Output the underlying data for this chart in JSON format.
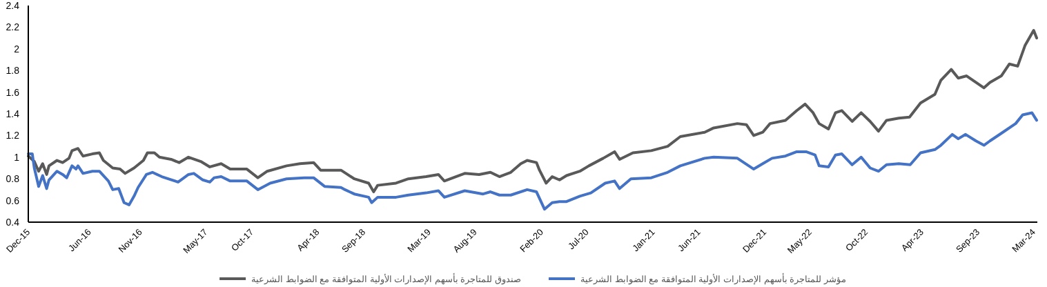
{
  "chart_data": {
    "type": "line",
    "xlim": [
      "2015-12-01",
      "2024-03-12"
    ],
    "xticks": [
      {
        "value": "2015-12-01",
        "label": "Dec-15"
      },
      {
        "value": "2016-06-01",
        "label": "Jun-16"
      },
      {
        "value": "2016-11-01",
        "label": "Nov-16"
      },
      {
        "value": "2017-05-16",
        "label": "May-17"
      },
      {
        "value": "2017-10-01",
        "label": "Oct-17"
      },
      {
        "value": "2018-04-16",
        "label": "Apr-18"
      },
      {
        "value": "2018-09-01",
        "label": "Sep-18"
      },
      {
        "value": "2019-03-16",
        "label": "Mar-19"
      },
      {
        "value": "2019-08-01",
        "label": "Aug-19"
      },
      {
        "value": "2020-02-16",
        "label": "Feb-20"
      },
      {
        "value": "2020-07-01",
        "label": "Jul-20"
      },
      {
        "value": "2021-01-16",
        "label": "Jan-21"
      },
      {
        "value": "2021-06-01",
        "label": "Jun-21"
      },
      {
        "value": "2021-12-16",
        "label": "Dec-21"
      },
      {
        "value": "2022-05-01",
        "label": "May-22"
      },
      {
        "value": "2022-10-16",
        "label": "Oct-22"
      },
      {
        "value": "2023-04-01",
        "label": "Apr-23"
      },
      {
        "value": "2023-09-16",
        "label": "Sep-23"
      },
      {
        "value": "2024-03-01",
        "label": "Mar-24"
      }
    ],
    "ylim": [
      0.4,
      2.4
    ],
    "yticks": [
      0.4,
      0.6,
      0.8,
      1,
      1.2,
      1.4,
      1.6,
      1.8,
      2,
      2.2,
      2.4
    ],
    "grid": false,
    "legend": "bottom",
    "marker": "none",
    "line_style": "solid",
    "series": [
      {
        "name": "صندوق للمتاجرة بأسهم الإصدارات الأولية المتوافقة مع الضوابط الشرعية",
        "color": "#595959",
        "x": [
          "2015-12-01",
          "2015-12-19",
          "2016-01-01",
          "2016-01-13",
          "2016-01-25",
          "2016-02-01",
          "2016-02-25",
          "2016-03-13",
          "2016-04-01",
          "2016-04-10",
          "2016-04-28",
          "2016-05-13",
          "2016-06-10",
          "2016-07-01",
          "2016-07-13",
          "2016-08-10",
          "2016-09-01",
          "2016-09-16",
          "2016-10-13",
          "2016-11-10",
          "2016-11-22",
          "2016-12-13",
          "2016-12-28",
          "2017-02-01",
          "2017-02-25",
          "2017-03-25",
          "2017-05-01",
          "2017-05-28",
          "2017-07-01",
          "2017-07-28",
          "2017-09-16",
          "2017-10-19",
          "2017-11-16",
          "2018-01-13",
          "2018-02-22",
          "2018-04-04",
          "2018-04-25",
          "2018-06-25",
          "2018-08-04",
          "2018-09-16",
          "2018-10-01",
          "2018-10-13",
          "2018-12-07",
          "2019-01-13",
          "2019-03-07",
          "2019-04-13",
          "2019-05-01",
          "2019-07-01",
          "2019-08-13",
          "2019-09-16",
          "2019-10-13",
          "2019-11-16",
          "2019-12-16",
          "2020-01-04",
          "2020-02-01",
          "2020-02-10",
          "2020-03-01",
          "2020-03-19",
          "2020-04-10",
          "2020-05-01",
          "2020-06-10",
          "2020-07-07",
          "2020-08-19",
          "2020-09-22",
          "2020-10-07",
          "2020-11-16",
          "2021-01-10",
          "2021-02-28",
          "2021-04-07",
          "2021-06-19",
          "2021-07-16",
          "2021-09-25",
          "2021-10-22",
          "2021-11-13",
          "2021-12-10",
          "2022-01-01",
          "2022-02-16",
          "2022-03-22",
          "2022-04-16",
          "2022-05-10",
          "2022-05-28",
          "2022-06-25",
          "2022-07-16",
          "2022-08-04",
          "2022-09-04",
          "2022-10-01",
          "2022-10-28",
          "2022-11-22",
          "2022-12-16",
          "2023-01-22",
          "2023-02-23",
          "2023-03-28",
          "2023-05-10",
          "2023-05-28",
          "2023-06-28",
          "2023-07-19",
          "2023-08-13",
          "2023-09-10",
          "2023-10-04",
          "2023-10-22",
          "2023-11-25",
          "2023-12-19",
          "2024-01-13",
          "2024-02-04",
          "2024-03-01",
          "2024-03-10"
        ],
        "values": [
          1.01,
          0.96,
          0.87,
          0.94,
          0.84,
          0.92,
          0.97,
          0.95,
          0.99,
          1.06,
          1.08,
          1.01,
          1.03,
          1.04,
          0.97,
          0.9,
          0.89,
          0.85,
          0.9,
          0.97,
          1.04,
          1.04,
          1.0,
          0.98,
          0.95,
          1.0,
          0.96,
          0.91,
          0.94,
          0.89,
          0.89,
          0.81,
          0.87,
          0.92,
          0.94,
          0.95,
          0.88,
          0.88,
          0.8,
          0.76,
          0.68,
          0.74,
          0.76,
          0.8,
          0.82,
          0.84,
          0.78,
          0.85,
          0.84,
          0.86,
          0.82,
          0.86,
          0.94,
          0.97,
          0.95,
          0.88,
          0.76,
          0.82,
          0.79,
          0.83,
          0.87,
          0.92,
          0.99,
          1.05,
          0.98,
          1.04,
          1.06,
          1.1,
          1.19,
          1.23,
          1.27,
          1.31,
          1.3,
          1.2,
          1.23,
          1.31,
          1.34,
          1.43,
          1.49,
          1.41,
          1.31,
          1.26,
          1.41,
          1.43,
          1.33,
          1.41,
          1.33,
          1.24,
          1.34,
          1.36,
          1.37,
          1.5,
          1.58,
          1.71,
          1.81,
          1.73,
          1.75,
          1.69,
          1.64,
          1.69,
          1.75,
          1.86,
          1.84,
          2.03,
          2.17,
          2.1
        ]
      },
      {
        "name": "مؤشر للمتاجرة بأسهم الإصدارات الأولية المتوافقة مع الضوابط الشرعية",
        "color": "#4472c4",
        "x": [
          "2015-12-01",
          "2015-12-13",
          "2015-12-19",
          "2016-01-01",
          "2016-01-13",
          "2016-01-25",
          "2016-02-01",
          "2016-02-25",
          "2016-03-13",
          "2016-03-25",
          "2016-04-10",
          "2016-04-22",
          "2016-04-28",
          "2016-05-13",
          "2016-06-10",
          "2016-07-01",
          "2016-07-28",
          "2016-08-10",
          "2016-08-28",
          "2016-09-13",
          "2016-09-28",
          "2016-10-13",
          "2016-10-25",
          "2016-11-19",
          "2016-12-07",
          "2017-01-04",
          "2017-02-22",
          "2017-03-25",
          "2017-04-10",
          "2017-05-07",
          "2017-05-28",
          "2017-06-10",
          "2017-07-01",
          "2017-07-28",
          "2017-09-16",
          "2017-10-19",
          "2017-11-25",
          "2018-01-13",
          "2018-03-07",
          "2018-04-04",
          "2018-05-07",
          "2018-06-25",
          "2018-07-07",
          "2018-08-04",
          "2018-09-16",
          "2018-09-25",
          "2018-10-13",
          "2018-12-07",
          "2019-01-13",
          "2019-03-07",
          "2019-04-13",
          "2019-05-01",
          "2019-07-01",
          "2019-08-25",
          "2019-09-16",
          "2019-10-13",
          "2019-11-16",
          "2020-01-04",
          "2020-02-01",
          "2020-02-25",
          "2020-03-19",
          "2020-04-10",
          "2020-05-01",
          "2020-06-10",
          "2020-07-13",
          "2020-08-25",
          "2020-09-22",
          "2020-10-07",
          "2020-11-10",
          "2021-01-10",
          "2021-02-28",
          "2021-04-07",
          "2021-06-19",
          "2021-07-16",
          "2021-09-25",
          "2021-11-13",
          "2021-12-10",
          "2022-01-07",
          "2022-02-16",
          "2022-03-22",
          "2022-04-19",
          "2022-05-16",
          "2022-05-28",
          "2022-06-25",
          "2022-07-16",
          "2022-08-04",
          "2022-09-04",
          "2022-10-01",
          "2022-10-28",
          "2022-11-22",
          "2022-12-16",
          "2023-01-22",
          "2023-02-25",
          "2023-03-28",
          "2023-05-10",
          "2023-05-28",
          "2023-07-01",
          "2023-07-19",
          "2023-08-10",
          "2023-09-10",
          "2023-10-04",
          "2023-10-22",
          "2023-11-25",
          "2024-01-07",
          "2024-01-28",
          "2024-02-25",
          "2024-03-10"
        ],
        "values": [
          1.03,
          1.03,
          0.9,
          0.73,
          0.83,
          0.71,
          0.79,
          0.87,
          0.84,
          0.81,
          0.92,
          0.89,
          0.92,
          0.85,
          0.87,
          0.87,
          0.78,
          0.7,
          0.71,
          0.58,
          0.56,
          0.64,
          0.72,
          0.84,
          0.86,
          0.82,
          0.77,
          0.84,
          0.85,
          0.79,
          0.77,
          0.81,
          0.82,
          0.78,
          0.78,
          0.7,
          0.76,
          0.8,
          0.81,
          0.81,
          0.73,
          0.72,
          0.7,
          0.66,
          0.63,
          0.58,
          0.63,
          0.63,
          0.65,
          0.67,
          0.69,
          0.63,
          0.69,
          0.66,
          0.68,
          0.65,
          0.65,
          0.7,
          0.68,
          0.52,
          0.58,
          0.59,
          0.59,
          0.64,
          0.67,
          0.76,
          0.78,
          0.71,
          0.8,
          0.81,
          0.86,
          0.92,
          0.99,
          1.0,
          0.99,
          0.89,
          0.94,
          0.99,
          1.01,
          1.05,
          1.05,
          1.02,
          0.92,
          0.91,
          1.02,
          1.03,
          0.93,
          1.0,
          0.9,
          0.87,
          0.93,
          0.94,
          0.93,
          1.04,
          1.07,
          1.11,
          1.21,
          1.17,
          1.21,
          1.15,
          1.11,
          1.15,
          1.22,
          1.31,
          1.39,
          1.41,
          1.34
        ]
      }
    ]
  }
}
